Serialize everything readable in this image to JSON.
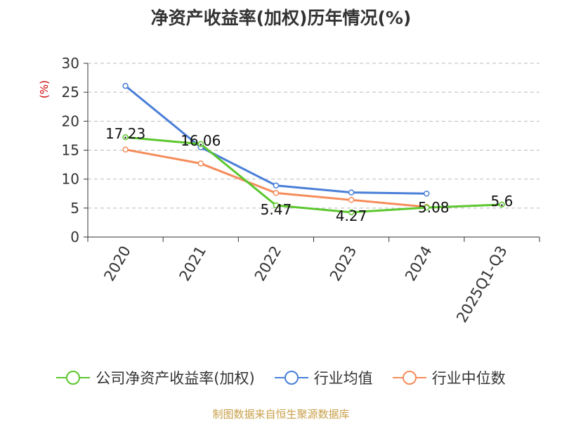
{
  "title": "净资产收益率(加权)历年情况(%)",
  "source_note": "制图数据来自恒生聚源数据库",
  "colors": {
    "company": "#5cc72e",
    "industry_avg": "#4a7fd8",
    "industry_median": "#f58c5a",
    "axis": "#333333",
    "grid": "#bbbbbb",
    "unit": "#cc0000"
  },
  "chart_data": {
    "type": "line",
    "title": "净资产收益率(加权)历年情况(%)",
    "ylabel": "(%)",
    "xlabel": "",
    "ylim": [
      0,
      30
    ],
    "yticks": [
      0,
      5,
      10,
      15,
      20,
      25,
      30
    ],
    "categories": [
      "2020",
      "2021",
      "2022",
      "2023",
      "2024",
      "2025Q1-Q3"
    ],
    "grid": "horizontal dashed",
    "legend_position": "bottom",
    "series": [
      {
        "key": "company",
        "name": "公司净资产收益率(加权)",
        "values": [
          17.23,
          16.06,
          5.47,
          4.27,
          5.08,
          5.6
        ],
        "labels": [
          "17.23",
          "16.06",
          "5.47",
          "4.27",
          "5.08",
          "5.6"
        ]
      },
      {
        "key": "industry_avg",
        "name": "行业均值",
        "values": [
          26.1,
          15.5,
          8.9,
          7.7,
          7.5,
          null
        ]
      },
      {
        "key": "industry_median",
        "name": "行业中位数",
        "values": [
          15.1,
          12.7,
          7.6,
          6.4,
          5.2,
          null
        ]
      }
    ]
  }
}
